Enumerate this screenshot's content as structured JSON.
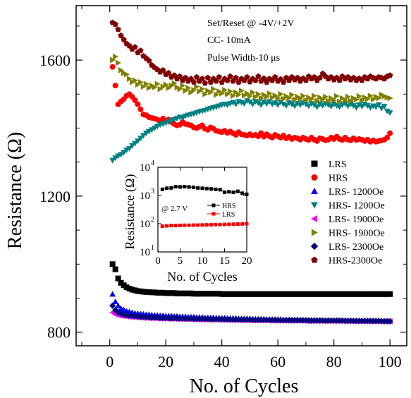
{
  "chart_data": [
    {
      "type": "scatter",
      "xlabel": "No. of Cycles",
      "ylabel": "Resistance (Ω)",
      "xlim": [
        -12,
        106
      ],
      "ylim": [
        760,
        1760
      ],
      "xticks": [
        0,
        20,
        40,
        60,
        80,
        100
      ],
      "yticks": [
        800,
        1200,
        1600
      ],
      "annotations": [
        "Set/Reset @ -4V/+2V",
        "CC- 10mA",
        "Pulse Width-10 μs"
      ],
      "legend_position": "right",
      "series": [
        {
          "name": "LRS",
          "marker": "square",
          "color": "#000000",
          "x_start": 1,
          "x_end": 100,
          "y": [
            1000,
            985,
            958,
            945,
            938,
            932,
            928,
            925,
            923,
            921,
            920,
            919,
            918,
            918,
            917,
            917,
            916,
            916,
            916,
            915,
            915,
            915,
            915,
            914,
            914,
            914,
            914,
            914,
            914,
            913,
            913,
            913,
            913,
            913,
            913,
            913,
            913,
            913,
            913,
            912,
            912,
            912,
            912,
            912,
            912,
            912,
            912,
            912,
            912,
            912,
            912,
            912,
            912,
            912,
            912,
            912,
            912,
            912,
            912,
            912,
            912,
            912,
            912,
            912,
            912,
            912,
            912,
            912,
            912,
            912,
            912,
            912,
            912,
            912,
            912,
            912,
            912,
            912,
            912,
            912,
            912,
            912,
            912,
            912,
            912,
            912,
            912,
            912,
            912,
            912,
            912,
            912,
            912,
            912,
            912,
            912,
            912,
            912,
            912,
            912
          ]
        },
        {
          "name": "HRS",
          "marker": "circle",
          "color": "#ff0000",
          "x_start": 1,
          "x_end": 100,
          "y": [
            1580,
            1525,
            1470,
            1478,
            1485,
            1495,
            1500,
            1492,
            1482,
            1470,
            1455,
            1440,
            1438,
            1432,
            1430,
            1428,
            1425,
            1420,
            1428,
            1422,
            1425,
            1418,
            1412,
            1408,
            1410,
            1418,
            1412,
            1410,
            1408,
            1402,
            1400,
            1404,
            1408,
            1398,
            1395,
            1402,
            1398,
            1392,
            1390,
            1388,
            1392,
            1386,
            1390,
            1385,
            1380,
            1388,
            1382,
            1380,
            1378,
            1382,
            1378,
            1380,
            1376,
            1385,
            1375,
            1382,
            1376,
            1372,
            1380,
            1376,
            1372,
            1378,
            1370,
            1374,
            1368,
            1372,
            1370,
            1366,
            1372,
            1368,
            1365,
            1372,
            1366,
            1362,
            1370,
            1368,
            1364,
            1366,
            1372,
            1368,
            1375,
            1368,
            1365,
            1372,
            1366,
            1364,
            1370,
            1365,
            1368,
            1366,
            1362,
            1366,
            1360,
            1364,
            1360,
            1362,
            1364,
            1366,
            1372,
            1385
          ]
        },
        {
          "name": "LRS- 1200Oe",
          "marker": "triangle-up",
          "color": "#0000ff",
          "x_start": 1,
          "x_end": 100,
          "y": [
            912,
            890,
            878,
            870,
            866,
            862,
            860,
            858,
            856,
            855,
            854,
            853,
            852,
            852,
            851,
            850,
            850,
            849,
            849,
            848,
            848,
            848,
            847,
            847,
            846,
            846,
            846,
            845,
            845,
            845,
            844,
            844,
            844,
            843,
            843,
            843,
            843,
            842,
            842,
            842,
            842,
            841,
            841,
            841,
            841,
            840,
            840,
            840,
            840,
            840,
            839,
            839,
            839,
            839,
            839,
            838,
            838,
            838,
            838,
            838,
            838,
            837,
            837,
            837,
            837,
            837,
            837,
            836,
            836,
            836,
            836,
            836,
            836,
            836,
            836,
            835,
            835,
            835,
            835,
            835,
            835,
            835,
            835,
            835,
            834,
            834,
            834,
            834,
            834,
            834,
            834,
            834,
            834,
            834,
            834,
            833,
            833,
            833,
            833,
            833
          ]
        },
        {
          "name": "HRS- 1200Oe",
          "marker": "triangle-down",
          "color": "#008080",
          "x_start": 1,
          "x_end": 100,
          "y": [
            1305,
            1312,
            1318,
            1322,
            1328,
            1335,
            1340,
            1348,
            1355,
            1362,
            1370,
            1378,
            1385,
            1390,
            1395,
            1400,
            1405,
            1410,
            1412,
            1415,
            1418,
            1422,
            1425,
            1428,
            1432,
            1430,
            1435,
            1438,
            1440,
            1442,
            1445,
            1448,
            1450,
            1452,
            1455,
            1458,
            1460,
            1462,
            1465,
            1468,
            1470,
            1468,
            1472,
            1475,
            1470,
            1478,
            1475,
            1472,
            1480,
            1476,
            1470,
            1478,
            1474,
            1468,
            1476,
            1472,
            1478,
            1470,
            1474,
            1468,
            1476,
            1470,
            1466,
            1474,
            1470,
            1465,
            1472,
            1468,
            1474,
            1470,
            1465,
            1472,
            1468,
            1462,
            1470,
            1466,
            1472,
            1468,
            1464,
            1470,
            1466,
            1462,
            1468,
            1472,
            1465,
            1470,
            1466,
            1460,
            1468,
            1464,
            1470,
            1466,
            1460,
            1465,
            1462,
            1468,
            1458,
            1464,
            1450,
            1445
          ]
        },
        {
          "name": "LRS- 1900Oe",
          "marker": "triangle-left",
          "color": "#ff00ff",
          "x_start": 1,
          "x_end": 100,
          "y": [
            858,
            852,
            850,
            848,
            847,
            846,
            845,
            844,
            844,
            843,
            843,
            842,
            842,
            841,
            841,
            841,
            840,
            840,
            840,
            840,
            839,
            839,
            839,
            839,
            839,
            838,
            838,
            838,
            838,
            838,
            838,
            837,
            837,
            837,
            837,
            837,
            837,
            837,
            836,
            836,
            836,
            836,
            836,
            836,
            836,
            836,
            835,
            835,
            835,
            835,
            835,
            835,
            835,
            835,
            835,
            835,
            834,
            834,
            834,
            834,
            834,
            834,
            834,
            834,
            834,
            834,
            834,
            834,
            834,
            833,
            833,
            833,
            833,
            833,
            833,
            833,
            833,
            833,
            833,
            833,
            833,
            833,
            833,
            833,
            833,
            833,
            832,
            832,
            832,
            832,
            832,
            832,
            832,
            832,
            832,
            832,
            832,
            832,
            832,
            832
          ]
        },
        {
          "name": "HRS- 1900Oe",
          "marker": "triangle-right",
          "color": "#808000",
          "x_start": 1,
          "x_end": 100,
          "y": [
            1600,
            1610,
            1592,
            1570,
            1562,
            1558,
            1545,
            1535,
            1540,
            1528,
            1535,
            1522,
            1530,
            1518,
            1525,
            1520,
            1530,
            1515,
            1522,
            1528,
            1518,
            1525,
            1532,
            1520,
            1515,
            1525,
            1510,
            1518,
            1505,
            1512,
            1522,
            1508,
            1515,
            1500,
            1510,
            1505,
            1515,
            1498,
            1508,
            1502,
            1512,
            1500,
            1508,
            1495,
            1505,
            1498,
            1510,
            1496,
            1502,
            1494,
            1505,
            1492,
            1500,
            1488,
            1498,
            1492,
            1502,
            1490,
            1496,
            1488,
            1500,
            1486,
            1494,
            1488,
            1498,
            1484,
            1492,
            1486,
            1495,
            1482,
            1490,
            1485,
            1495,
            1480,
            1490,
            1484,
            1492,
            1480,
            1488,
            1482,
            1494,
            1478,
            1488,
            1482,
            1492,
            1480,
            1488,
            1484,
            1494,
            1482,
            1490,
            1486,
            1495,
            1484,
            1492,
            1488,
            1498,
            1494,
            1490,
            1488
          ]
        },
        {
          "name": "LRS- 2300Oe",
          "marker": "diamond",
          "color": "#000080",
          "x_start": 1,
          "x_end": 100,
          "y": [
            878,
            865,
            858,
            854,
            852,
            850,
            849,
            848,
            847,
            846,
            845,
            845,
            844,
            844,
            843,
            843,
            843,
            842,
            842,
            842,
            841,
            841,
            841,
            841,
            840,
            840,
            840,
            840,
            840,
            839,
            839,
            839,
            839,
            839,
            839,
            838,
            838,
            838,
            838,
            838,
            838,
            838,
            837,
            837,
            837,
            837,
            837,
            837,
            837,
            837,
            836,
            836,
            836,
            836,
            836,
            836,
            836,
            836,
            836,
            835,
            835,
            835,
            835,
            835,
            835,
            835,
            835,
            835,
            835,
            835,
            834,
            834,
            834,
            834,
            834,
            834,
            834,
            834,
            834,
            834,
            834,
            834,
            834,
            833,
            833,
            833,
            833,
            833,
            833,
            833,
            833,
            833,
            833,
            833,
            833,
            833,
            832,
            832,
            832,
            832
          ]
        },
        {
          "name": "HRS-2300Oe",
          "marker": "pentagon",
          "color": "#800000",
          "x_start": 1,
          "x_end": 100,
          "y": [
            1710,
            1705,
            1690,
            1672,
            1660,
            1648,
            1642,
            1632,
            1638,
            1622,
            1628,
            1612,
            1605,
            1598,
            1585,
            1578,
            1572,
            1565,
            1570,
            1558,
            1562,
            1550,
            1555,
            1545,
            1552,
            1540,
            1548,
            1538,
            1545,
            1535,
            1550,
            1538,
            1545,
            1532,
            1548,
            1535,
            1545,
            1538,
            1550,
            1535,
            1545,
            1540,
            1552,
            1538,
            1548,
            1535,
            1545,
            1540,
            1550,
            1536,
            1545,
            1540,
            1552,
            1538,
            1546,
            1535,
            1545,
            1540,
            1550,
            1538,
            1544,
            1535,
            1548,
            1540,
            1550,
            1542,
            1548,
            1538,
            1546,
            1540,
            1552,
            1545,
            1550,
            1540,
            1548,
            1560,
            1552,
            1545,
            1550,
            1542,
            1548,
            1540,
            1552,
            1545,
            1550,
            1542,
            1548,
            1540,
            1546,
            1540,
            1550,
            1545,
            1552,
            1548,
            1545,
            1550,
            1548,
            1545,
            1552,
            1555
          ]
        }
      ]
    },
    {
      "type": "scatter",
      "role": "inset",
      "xlabel": "No. of Cycles",
      "ylabel": "Resistance (Ω)",
      "xlim": [
        0,
        20
      ],
      "ylim_log10": [
        1,
        4
      ],
      "yscale": "log",
      "xticks": [
        0,
        5,
        10,
        15,
        20
      ],
      "yticks": [
        "10",
        "10",
        "10",
        "10"
      ],
      "ytick_exponents": [
        "1",
        "2",
        "3",
        "4"
      ],
      "annotation": "@ 2.7 V",
      "legend_position": "right",
      "series": [
        {
          "name": "HRS",
          "marker": "square",
          "color": "#000000",
          "x": [
            1,
            2,
            3,
            4,
            5,
            6,
            7,
            8,
            9,
            10,
            11,
            12,
            13,
            14,
            15,
            16,
            17,
            18,
            19,
            20
          ],
          "y": [
            1650,
            1800,
            1850,
            2050,
            2000,
            2050,
            2000,
            1950,
            1850,
            1800,
            1750,
            1700,
            1650,
            1600,
            1300,
            1350,
            1300,
            1400,
            1200,
            1100
          ]
        },
        {
          "name": "LRS",
          "marker": "square",
          "color": "#ff0000",
          "x": [
            1,
            2,
            3,
            4,
            5,
            6,
            7,
            8,
            9,
            10,
            11,
            12,
            13,
            14,
            15,
            16,
            17,
            18,
            19,
            20
          ],
          "y": [
            82,
            84,
            86,
            86,
            87,
            88,
            88,
            89,
            89,
            90,
            91,
            92,
            93,
            93,
            94,
            95,
            96,
            97,
            98,
            100
          ]
        }
      ]
    }
  ]
}
